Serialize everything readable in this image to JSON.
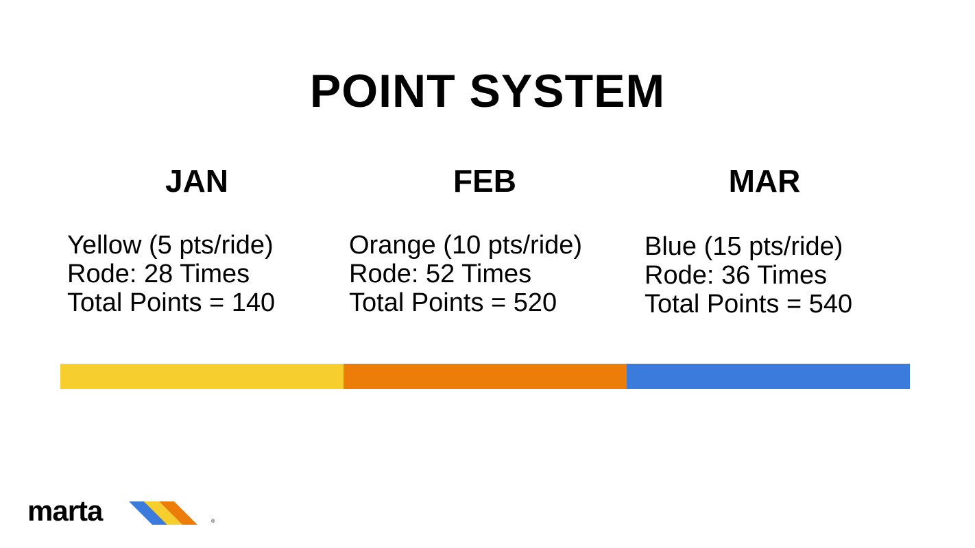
{
  "title": "POINT SYSTEM",
  "months": [
    {
      "label": "JAN",
      "line": "Yellow (5 pts/ride)",
      "rode": "Rode: 28 Times",
      "total": "Total Points = 140",
      "color": "#F6CE2D"
    },
    {
      "label": "FEB",
      "line": "Orange (10 pts/ride)",
      "rode": "Rode: 52 Times",
      "total": "Total Points = 520",
      "color": "#EC7D08"
    },
    {
      "label": "MAR",
      "line": "Blue (15 pts/ride)",
      "rode": "Rode: 36 Times",
      "total": "Total Points = 540",
      "color": "#3A7BDB"
    }
  ],
  "logo": {
    "text": "marta",
    "registered": "®",
    "stripe_colors": [
      "#3A7BDB",
      "#F6CE2D",
      "#EC7D08"
    ]
  }
}
